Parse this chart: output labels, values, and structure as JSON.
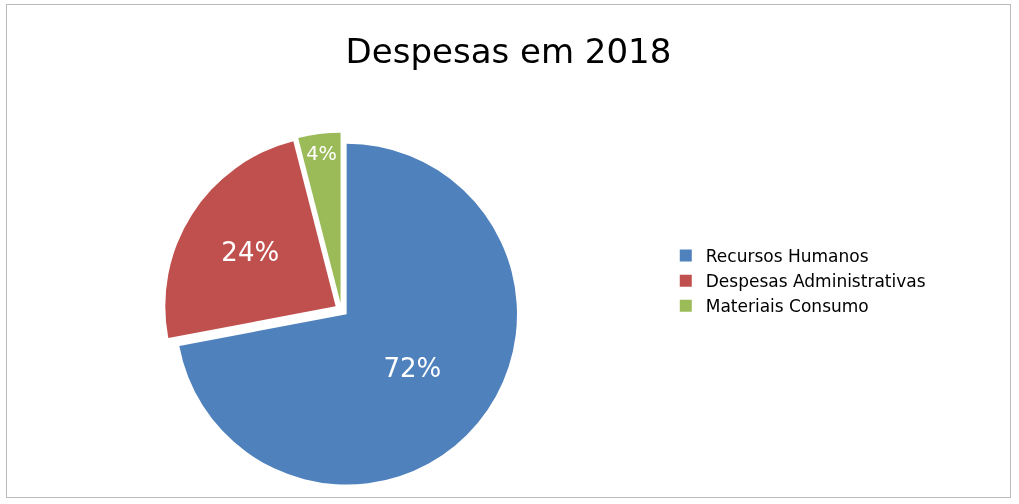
{
  "chart_data": {
    "type": "pie",
    "title": "Despesas em 2018",
    "categories": [
      "Recursos Humanos",
      "Despesas Administrativas",
      "Materiais Consumo"
    ],
    "values": [
      72,
      24,
      4
    ],
    "colors": [
      "#4f81bd",
      "#c0504d",
      "#9bbb59"
    ],
    "value_labels": [
      "72%",
      "24%",
      "4%"
    ],
    "legend": "right"
  }
}
